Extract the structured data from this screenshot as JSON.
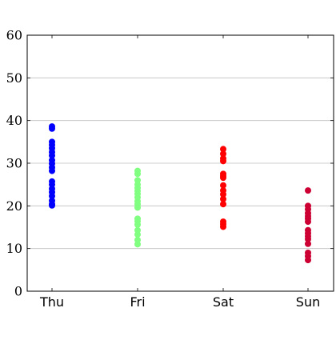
{
  "chart_data": {
    "type": "scatter",
    "title": "",
    "xlabel": "",
    "ylabel": "",
    "categories": [
      "Thu",
      "Fri",
      "Sat",
      "Sun"
    ],
    "ylim": [
      0,
      60
    ],
    "yticks": [
      0,
      10,
      20,
      30,
      40,
      50,
      60
    ],
    "grid": "horizontal",
    "series": [
      {
        "category": "Thu",
        "color": "#0000ff",
        "values": [
          38.6,
          38.1,
          35.0,
          34.3,
          33.5,
          32.6,
          31.8,
          30.7,
          29.9,
          29.0,
          28.2,
          25.7,
          25.0,
          24.0,
          23.2,
          22.3,
          21.2,
          20.4,
          20.1
        ]
      },
      {
        "category": "Fri",
        "color": "#80ff80",
        "values": [
          28.2,
          27.5,
          26.0,
          25.0,
          24.2,
          23.5,
          22.8,
          22.0,
          21.1,
          20.4,
          19.6,
          17.0,
          16.4,
          15.6,
          14.3,
          13.3,
          12.0,
          11.0
        ]
      },
      {
        "category": "Sat",
        "color": "#ff0000",
        "values": [
          33.3,
          32.2,
          31.1,
          30.5,
          27.5,
          27.0,
          26.6,
          24.8,
          23.6,
          22.7,
          21.6,
          20.4,
          16.3,
          15.7,
          15.1
        ]
      },
      {
        "category": "Sun",
        "color": "#cc0033",
        "values": [
          23.6,
          20.0,
          19.2,
          18.3,
          17.6,
          17.0,
          16.3,
          14.3,
          13.6,
          12.9,
          12.2,
          11.1,
          9.0,
          8.2,
          7.3
        ]
      }
    ]
  }
}
